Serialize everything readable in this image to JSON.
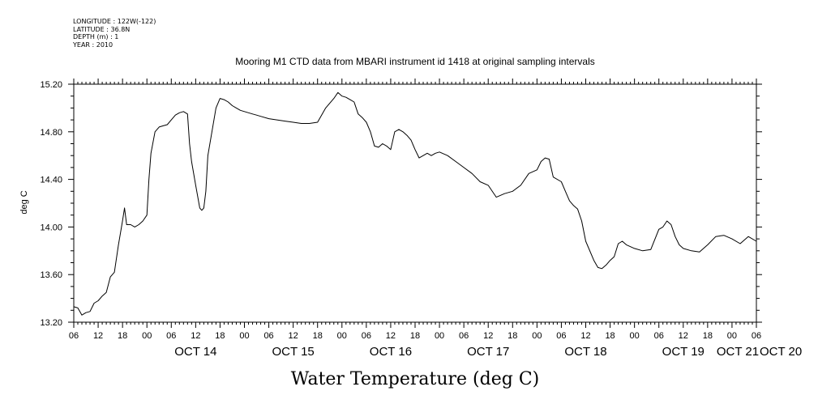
{
  "meta": {
    "longitude": "LONGITUDE : 122W(-122)",
    "latitude": "LATITUDE : 36.8N",
    "depth": "DEPTH (m) : 1",
    "year": "YEAR : 2010"
  },
  "chart_data": {
    "type": "line",
    "title": "Mooring M1 CTD data from MBARI instrument id 1418 at original sampling intervals",
    "xlabel": "Water Temperature (deg C)",
    "ylabel": "deg C",
    "ylim": [
      13.2,
      15.2
    ],
    "xlim_hours": [
      6,
      174
    ],
    "grid": false,
    "y_ticks": [
      "13.20",
      "13.60",
      "14.00",
      "14.40",
      "14.80",
      "15.20"
    ],
    "x_hour_labels": [
      "06",
      "12",
      "18",
      "00",
      "06",
      "12",
      "18",
      "00",
      "06",
      "12",
      "18",
      "00",
      "06",
      "12",
      "18",
      "00",
      "06",
      "12",
      "18",
      "00",
      "06",
      "12",
      "18",
      "00",
      "06",
      "12",
      "18",
      "00",
      "06"
    ],
    "x_day_labels": [
      "OCT 14",
      "OCT 15",
      "OCT 16",
      "OCT 17",
      "OCT 18",
      "OCT 19",
      "OCT 20",
      "OCT 21"
    ],
    "series": [
      {
        "x": [
          6,
          7,
          8,
          9,
          10,
          11,
          12,
          13,
          14,
          15,
          16,
          17,
          17.5,
          18,
          18.5,
          19,
          20,
          21,
          22,
          23,
          24,
          24.5,
          25,
          26,
          27,
          28,
          29,
          30,
          31,
          32,
          33,
          34,
          34.5,
          35,
          36,
          37,
          37.5,
          38,
          38.5,
          39,
          40,
          41,
          42,
          43,
          44,
          45,
          46,
          47,
          48,
          49,
          50,
          51,
          52,
          54,
          56,
          58,
          60,
          62,
          64,
          66,
          68,
          70,
          71,
          72,
          73,
          74,
          75,
          76,
          77,
          78,
          79,
          80,
          81,
          82,
          83,
          84,
          85,
          86,
          87,
          88,
          89,
          90,
          91,
          92,
          93,
          94,
          95,
          96,
          98,
          100,
          102,
          104,
          106,
          108,
          110,
          112,
          114,
          116,
          118,
          120,
          121,
          122,
          123,
          124,
          126,
          127,
          128,
          129,
          130,
          131,
          132,
          134,
          135,
          136,
          137,
          138,
          139,
          140,
          141,
          142,
          144,
          146,
          148,
          150,
          151,
          152,
          153,
          154,
          155,
          156,
          158,
          160,
          162,
          164,
          166,
          168,
          170,
          172,
          174
        ],
        "y": [
          13.33,
          13.32,
          13.26,
          13.28,
          13.29,
          13.36,
          13.38,
          13.42,
          13.45,
          13.58,
          13.62,
          13.85,
          13.95,
          14.05,
          14.16,
          14.02,
          14.02,
          14.0,
          14.02,
          14.05,
          14.1,
          14.4,
          14.62,
          14.8,
          14.84,
          14.85,
          14.86,
          14.9,
          14.94,
          14.96,
          14.97,
          14.95,
          14.7,
          14.55,
          14.35,
          14.16,
          14.14,
          14.16,
          14.3,
          14.6,
          14.8,
          15.0,
          15.08,
          15.07,
          15.05,
          15.02,
          15.0,
          14.98,
          14.97,
          14.96,
          14.95,
          14.94,
          14.93,
          14.91,
          14.9,
          14.89,
          14.88,
          14.87,
          14.87,
          14.88,
          15.0,
          15.08,
          15.13,
          15.1,
          15.09,
          15.07,
          15.05,
          14.95,
          14.92,
          14.88,
          14.8,
          14.68,
          14.67,
          14.7,
          14.68,
          14.65,
          14.8,
          14.82,
          14.8,
          14.77,
          14.73,
          14.65,
          14.58,
          14.6,
          14.62,
          14.6,
          14.62,
          14.63,
          14.6,
          14.55,
          14.5,
          14.45,
          14.38,
          14.35,
          14.25,
          14.28,
          14.3,
          14.35,
          14.45,
          14.48,
          14.55,
          14.58,
          14.57,
          14.42,
          14.38,
          14.3,
          14.22,
          14.18,
          14.15,
          14.05,
          13.88,
          13.72,
          13.66,
          13.65,
          13.68,
          13.72,
          13.75,
          13.86,
          13.88,
          13.85,
          13.82,
          13.8,
          13.81,
          13.98,
          14.0,
          14.05,
          14.02,
          13.92,
          13.85,
          13.82,
          13.8,
          13.79,
          13.85,
          13.92,
          13.93,
          13.9,
          13.86,
          13.92,
          13.88
        ]
      }
    ]
  }
}
